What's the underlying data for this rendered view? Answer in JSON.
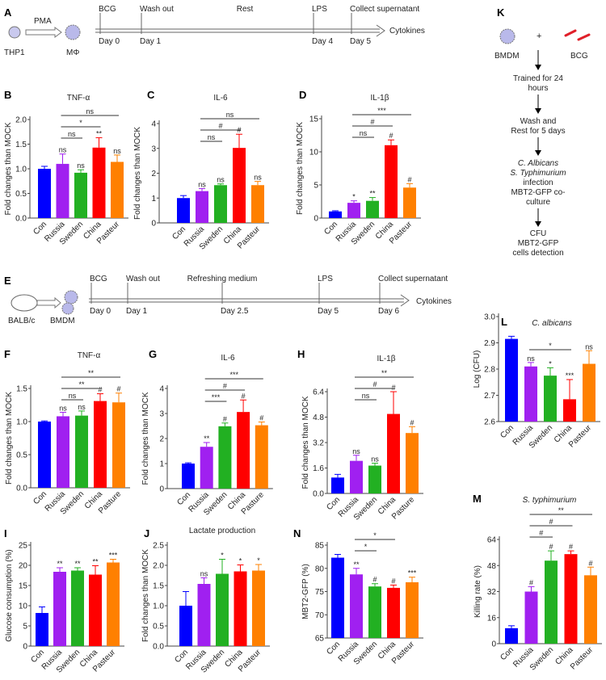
{
  "colors": {
    "Con": "#0000ff",
    "Russia": "#a020f0",
    "Sweden": "#22b022",
    "China": "#ff0000",
    "Pasteur": "#ff8000",
    "axis": "#555555"
  },
  "panel_letters": {
    "A": "A",
    "B": "B",
    "C": "C",
    "D": "D",
    "E": "E",
    "F": "F",
    "G": "G",
    "H": "H",
    "I": "I",
    "J": "J",
    "K": "K",
    "L": "L",
    "M": "M",
    "N": "N"
  },
  "schematic_a": {
    "cell1": "THP1",
    "arrow": "PMA",
    "cell2": "MΦ",
    "events": [
      {
        "top": "BCG",
        "bottom": "Day 0"
      },
      {
        "top": "Wash out",
        "bottom": "Day 1"
      },
      {
        "top": "Rest",
        "bottom": ""
      },
      {
        "top": "LPS",
        "bottom": "Day 4"
      },
      {
        "top": "Collect supernatant",
        "bottom": "Day 5"
      }
    ],
    "end": "Cytokines"
  },
  "schematic_e": {
    "mouse": "BALB/c",
    "cell": "BMDM",
    "events": [
      {
        "top": "BCG",
        "bottom": "Day 0"
      },
      {
        "top": "Wash out",
        "bottom": "Day 1"
      },
      {
        "top": "Refreshing medium",
        "bottom": "Day 2.5"
      },
      {
        "top": "LPS",
        "bottom": "Day 5"
      },
      {
        "top": "Collect supernatant",
        "bottom": "Day 6"
      }
    ],
    "end": "Cytokines"
  },
  "schematic_k": {
    "cell": "BMDM",
    "plus": "+",
    "bcg": "BCG",
    "step1": [
      "Trained for 24",
      "hours"
    ],
    "step2": [
      "Wash and",
      "Rest for 5 days"
    ],
    "step3_italic": [
      "C. Albicans",
      "S. Typhimurium"
    ],
    "step3": [
      "infection",
      "MBT2-GFP co-",
      "culture"
    ],
    "step4": [
      "CFU",
      "MBT2-GFP",
      "cells detection"
    ]
  },
  "chart_data": [
    {
      "id": "B",
      "type": "bar",
      "title": "TNF-α",
      "ylabel": "Fold changes than MOCK",
      "ylim": [
        0,
        2
      ],
      "yticks": [
        "0.0",
        "0.5",
        "1.0",
        "1.5",
        "2.0"
      ],
      "ytick_values": [
        0,
        0.5,
        1,
        1.5,
        2
      ],
      "categories": [
        "Con",
        "Russia",
        "Sweden",
        "China",
        "Pasteur"
      ],
      "values": [
        1.0,
        1.1,
        0.92,
        1.43,
        1.14
      ],
      "errors": [
        0.05,
        0.2,
        0.06,
        0.2,
        0.14
      ],
      "marks": [
        "",
        "ns",
        "ns",
        "**",
        "ns"
      ],
      "brackets": [
        {
          "from": "Russia",
          "to": "Pasteur",
          "label": "ns"
        },
        {
          "from": "Russia",
          "to": "China",
          "label": "*"
        },
        {
          "from": "Russia",
          "to": "Sweden",
          "label": "ns"
        }
      ]
    },
    {
      "id": "C",
      "type": "bar",
      "title": "IL-6",
      "ylabel": "Fold changes than MOCK",
      "ylim": [
        0,
        4
      ],
      "yticks": [
        "0",
        "1",
        "2",
        "3",
        "4"
      ],
      "ytick_values": [
        0,
        1,
        2,
        3,
        4
      ],
      "categories": [
        "Con",
        "Russia",
        "Sweden",
        "China",
        "Pasteur"
      ],
      "values": [
        1.0,
        1.28,
        1.52,
        3.02,
        1.52
      ],
      "errors": [
        0.1,
        0.1,
        0.05,
        0.55,
        0.15
      ],
      "marks": [
        "",
        "ns",
        "ns",
        "#",
        "ns"
      ],
      "brackets": [
        {
          "from": "Russia",
          "to": "Pasteur",
          "label": "ns"
        },
        {
          "from": "Russia",
          "to": "China",
          "label": "#"
        },
        {
          "from": "Russia",
          "to": "Sweden",
          "label": "ns"
        }
      ]
    },
    {
      "id": "D",
      "type": "bar",
      "title": "IL-1β",
      "ylabel": "Fold changes than MOCK",
      "ylim": [
        0,
        15
      ],
      "yticks": [
        "0",
        "5",
        "10",
        "15"
      ],
      "ytick_values": [
        0,
        5,
        10,
        15
      ],
      "categories": [
        "Con",
        "Russia",
        "Sweden",
        "China",
        "Pasteur"
      ],
      "values": [
        1.0,
        2.3,
        2.6,
        11.0,
        4.6
      ],
      "errors": [
        0.1,
        0.3,
        0.5,
        0.8,
        0.6
      ],
      "marks": [
        "",
        "*",
        "**",
        "#",
        "#"
      ],
      "brackets": [
        {
          "from": "Russia",
          "to": "Pasteur",
          "label": "***"
        },
        {
          "from": "Russia",
          "to": "China",
          "label": "#"
        },
        {
          "from": "Russia",
          "to": "Sweden",
          "label": "ns"
        }
      ]
    },
    {
      "id": "F",
      "type": "bar",
      "title": "TNF-α",
      "ylabel": "Fold changes than MOCK",
      "ylim": [
        0,
        1.5
      ],
      "yticks": [
        "0.0",
        "0.5",
        "1.0",
        "1.5"
      ],
      "ytick_values": [
        0,
        0.5,
        1,
        1.5
      ],
      "categories": [
        "Con",
        "Russia",
        "Sweden",
        "China",
        "Pasture"
      ],
      "values": [
        1.0,
        1.08,
        1.09,
        1.31,
        1.29
      ],
      "errors": [
        0.01,
        0.06,
        0.07,
        0.11,
        0.14
      ],
      "marks": [
        "",
        "ns",
        "ns",
        "#",
        "#"
      ],
      "brackets": [
        {
          "from": "Russia",
          "to": "Pasteur",
          "label": "**"
        },
        {
          "from": "Russia",
          "to": "China",
          "label": "**"
        },
        {
          "from": "Russia",
          "to": "Sweden",
          "label": "ns"
        }
      ]
    },
    {
      "id": "G",
      "type": "bar",
      "title": "IL-6",
      "ylabel": "Fold changes than MOCK",
      "ylim": [
        0,
        4
      ],
      "yticks": [
        "0",
        "1",
        "2",
        "3",
        "4"
      ],
      "ytick_values": [
        0,
        1,
        2,
        3,
        4
      ],
      "categories": [
        "Con",
        "Russia",
        "Sweden",
        "China",
        "Pasture"
      ],
      "values": [
        1.0,
        1.67,
        2.49,
        3.06,
        2.53
      ],
      "errors": [
        0.03,
        0.17,
        0.13,
        0.48,
        0.13
      ],
      "marks": [
        "",
        "**",
        "#",
        "#",
        "#"
      ],
      "brackets": [
        {
          "from": "Russia",
          "to": "Pasteur",
          "label": "***"
        },
        {
          "from": "Russia",
          "to": "China",
          "label": "#"
        },
        {
          "from": "Russia",
          "to": "Sweden",
          "label": "***"
        }
      ]
    },
    {
      "id": "H",
      "type": "bar",
      "title": "IL-1β",
      "ylabel": "Fold changes than MOCK",
      "ylim": [
        0,
        6.4
      ],
      "yticks": [
        "0.0",
        "1.6",
        "3.2",
        "4.8",
        "6.4"
      ],
      "ytick_values": [
        0,
        1.6,
        3.2,
        4.8,
        6.4
      ],
      "categories": [
        "Con",
        "Russia",
        "Sweden",
        "China",
        "Pasture"
      ],
      "values": [
        1.0,
        2.05,
        1.75,
        5.0,
        3.8
      ],
      "errors": [
        0.2,
        0.35,
        0.15,
        1.4,
        0.4
      ],
      "marks": [
        "",
        "ns",
        "ns",
        "#",
        "#"
      ],
      "brackets": [
        {
          "from": "Russia",
          "to": "Pasteur",
          "label": "**"
        },
        {
          "from": "Russia",
          "to": "China",
          "label": "#"
        },
        {
          "from": "Russia",
          "to": "Sweden",
          "label": "ns"
        }
      ]
    },
    {
      "id": "I",
      "type": "bar",
      "title": "",
      "ylabel": "Glucose consumption (%)",
      "ylim": [
        0,
        25
      ],
      "yticks": [
        "0",
        "5",
        "10",
        "15",
        "20",
        "25"
      ],
      "ytick_values": [
        0,
        5,
        10,
        15,
        20,
        25
      ],
      "categories": [
        "Con",
        "Russia",
        "Sweden",
        "China",
        "Pasteur"
      ],
      "values": [
        8.2,
        18.4,
        18.7,
        17.7,
        20.7
      ],
      "errors": [
        1.5,
        1.0,
        0.7,
        2.2,
        0.8
      ],
      "marks": [
        "",
        "**",
        "**",
        "**",
        "***"
      ],
      "brackets": []
    },
    {
      "id": "J",
      "type": "bar",
      "title": "Lactate production",
      "ylabel": "Fold changes than MOCK",
      "ylim": [
        0,
        2.5
      ],
      "yticks": [
        "0.0",
        "0.5",
        "1.0",
        "1.5",
        "2.0",
        "2.5"
      ],
      "ytick_values": [
        0,
        0.5,
        1,
        1.5,
        2,
        2.5
      ],
      "categories": [
        "Con",
        "Russia",
        "Sweden",
        "China",
        "Pasteur"
      ],
      "values": [
        1.0,
        1.54,
        1.79,
        1.85,
        1.87
      ],
      "errors": [
        0.35,
        0.15,
        0.36,
        0.16,
        0.15
      ],
      "marks": [
        "",
        "ns",
        "*",
        "*",
        "*"
      ],
      "brackets": []
    },
    {
      "id": "N",
      "type": "bar",
      "title": "",
      "ylabel": "MBT2-GFP (%)",
      "ylim": [
        65,
        85
      ],
      "yticks": [
        "65",
        "70",
        "75",
        "80",
        "85"
      ],
      "ytick_values": [
        65,
        70,
        75,
        80,
        85
      ],
      "categories": [
        "Con",
        "Russia",
        "Sweden",
        "China",
        "Pasteur"
      ],
      "values": [
        82.3,
        78.7,
        76.1,
        75.8,
        77.0
      ],
      "errors": [
        0.7,
        1.3,
        0.6,
        0.6,
        1.1
      ],
      "marks": [
        "",
        "**",
        "#",
        "#",
        "***"
      ],
      "brackets": [
        {
          "from": "Russia",
          "to": "China",
          "label": "*"
        },
        {
          "from": "Russia",
          "to": "Sweden",
          "label": "*"
        }
      ]
    },
    {
      "id": "L",
      "type": "bar",
      "title": "C. albicans",
      "ylabel": "Log (CFU)",
      "ylim": [
        2.6,
        3.0
      ],
      "yticks": [
        "2.6",
        "2.7",
        "2.8",
        "2.9",
        "3.0"
      ],
      "ytick_values": [
        2.6,
        2.7,
        2.8,
        2.9,
        3.0
      ],
      "categories": [
        "Con",
        "Russia",
        "Sweden",
        "China",
        "Pasteur"
      ],
      "values": [
        2.915,
        2.81,
        2.775,
        2.685,
        2.82
      ],
      "errors": [
        0.01,
        0.015,
        0.03,
        0.075,
        0.05
      ],
      "marks": [
        "",
        "ns",
        "*",
        "***",
        "ns"
      ],
      "brackets": [
        {
          "from": "Russia",
          "to": "China",
          "label": "*"
        }
      ]
    },
    {
      "id": "M",
      "type": "bar",
      "title": "S. typhimurium",
      "ylabel": "Killing rate (%)",
      "ylim": [
        0,
        64
      ],
      "yticks": [
        "0",
        "16",
        "32",
        "48",
        "64"
      ],
      "ytick_values": [
        0,
        16,
        32,
        48,
        64
      ],
      "categories": [
        "Con",
        "Russia",
        "Sweden",
        "China",
        "Pasteur"
      ],
      "values": [
        9.5,
        32,
        51,
        55,
        42
      ],
      "errors": [
        1.5,
        3,
        6,
        2,
        5
      ],
      "marks": [
        "",
        "#",
        "#",
        "#",
        "#"
      ],
      "brackets": [
        {
          "from": "Russia",
          "to": "Pasteur",
          "label": "**"
        },
        {
          "from": "Russia",
          "to": "China",
          "label": "#"
        },
        {
          "from": "Russia",
          "to": "Sweden",
          "label": "#"
        }
      ]
    }
  ]
}
